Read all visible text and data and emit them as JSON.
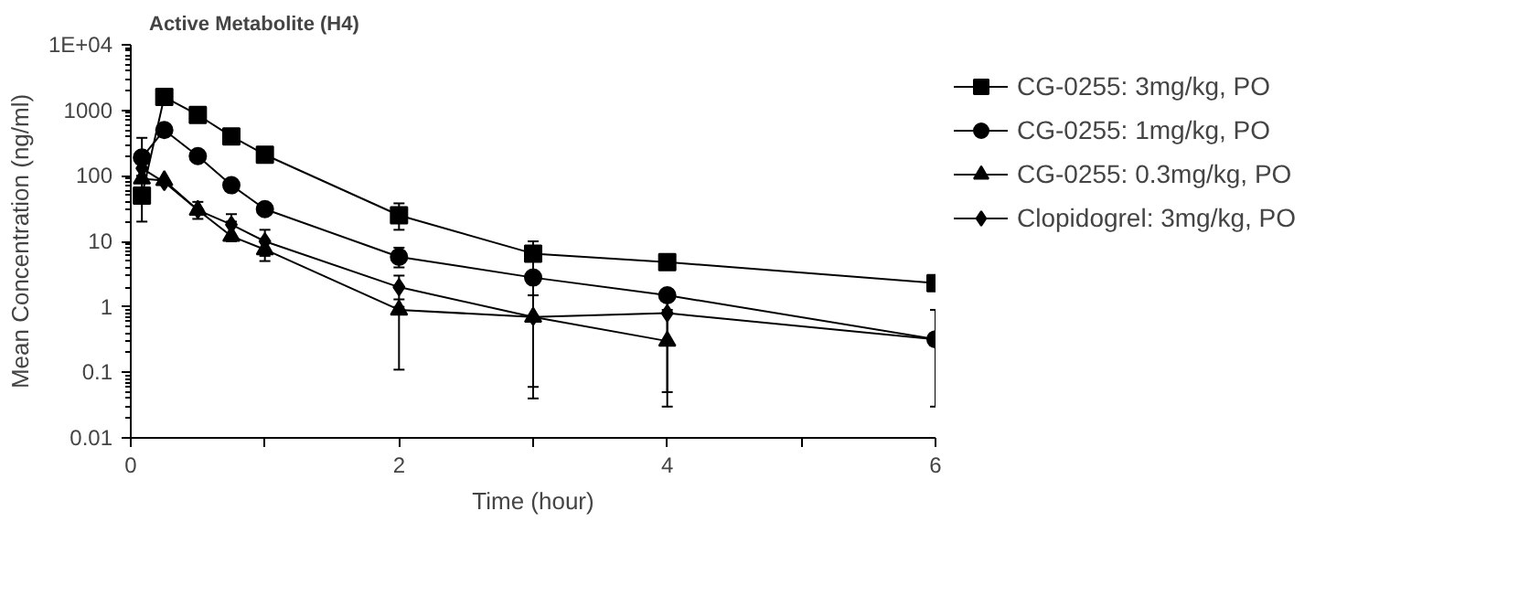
{
  "chart_data": {
    "type": "line",
    "title": "Active Metabolite (H4)",
    "xlabel": "Time (hour)",
    "ylabel": "Mean Concentration (ng/ml)",
    "x": [
      0.083,
      0.25,
      0.5,
      0.75,
      1,
      2,
      3,
      4,
      6
    ],
    "series": [
      {
        "name": "CG-0255: 3mg/kg, PO",
        "color": "#000000",
        "marker": "square",
        "values": [
          50,
          1600,
          850,
          400,
          210,
          25,
          6.5,
          4.8,
          2.3
        ],
        "errors": [
          [
            20,
            100
          ],
          null,
          null,
          null,
          null,
          [
            15,
            38
          ],
          [
            5,
            10
          ],
          null,
          null
        ]
      },
      {
        "name": "CG-0255: 1mg/kg, PO",
        "color": "#000000",
        "marker": "circle",
        "values": [
          190,
          500,
          200,
          72,
          31,
          5.8,
          2.8,
          1.5,
          0.32
        ],
        "errors": [
          [
            100,
            380
          ],
          null,
          null,
          null,
          null,
          [
            4,
            8
          ],
          [
            1.5,
            5
          ],
          null,
          [
            0.03,
            0.9
          ]
        ]
      },
      {
        "name": "CG-0255: 0.3mg/kg, PO",
        "color": "#000000",
        "marker": "triangle",
        "values": [
          90,
          85,
          30,
          12,
          7.5,
          0.9,
          0.7,
          0.3,
          null
        ],
        "errors": [
          null,
          null,
          [
            22,
            40
          ],
          [
            10,
            20
          ],
          [
            5,
            10
          ],
          [
            0.11,
            1
          ],
          [
            0.04,
            2.5
          ],
          [
            0.03,
            0.9
          ],
          null
        ]
      },
      {
        "name": "Clopidogrel: 3mg/kg, PO",
        "color": "#000000",
        "marker": "diamond",
        "values": [
          130,
          80,
          30,
          18,
          10,
          2,
          0.7,
          0.8,
          0.32
        ],
        "errors": [
          null,
          null,
          null,
          [
            12,
            26
          ],
          [
            6,
            15
          ],
          [
            1.3,
            3
          ],
          [
            0.06,
            1.5
          ],
          [
            0.05,
            1.3
          ],
          null
        ]
      }
    ],
    "xlim": [
      0,
      6
    ],
    "xticks": [
      0,
      {
        "value": 1,
        "label": null
      },
      2,
      {
        "value": 3,
        "label": null
      },
      4,
      {
        "value": 5,
        "label": null
      },
      6
    ],
    "ylim": [
      0.01,
      10000
    ],
    "yticks": [
      {
        "value": 10000,
        "label": "1E+04"
      },
      1000,
      100,
      10,
      1,
      0.1,
      0.01
    ],
    "log": "y",
    "grid": false,
    "legend": "right",
    "line_style": "solid"
  }
}
